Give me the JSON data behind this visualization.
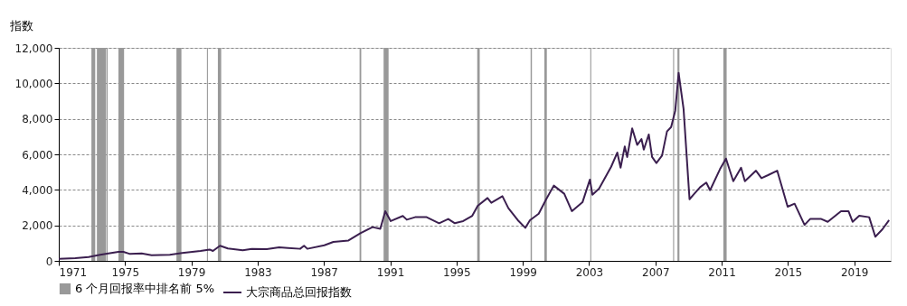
{
  "chart_data": {
    "type": "line",
    "ylabel": "指数",
    "xlim": [
      1971,
      2021.2
    ],
    "xticks": [
      1971,
      1975,
      1979,
      1983,
      1987,
      1991,
      1995,
      1999,
      2003,
      2007,
      2011,
      2015,
      2019
    ],
    "ylim": [
      0,
      12000
    ],
    "yticks": [
      0,
      {
        "value": 2000,
        "label": "2,000"
      },
      {
        "value": 4000,
        "label": "4,000"
      },
      {
        "value": 6000,
        "label": "6,000"
      },
      {
        "value": 8000,
        "label": "8,000"
      },
      {
        "value": 10000,
        "label": "10,000"
      },
      {
        "value": 12000,
        "label": "12,000"
      }
    ],
    "grid": "y",
    "legend": "bottom",
    "series": [
      {
        "name": "大宗商品总回报指数",
        "color": "#3b1f4f",
        "x": [
          1971.0,
          1972.0,
          1972.8,
          1973.5,
          1974.0,
          1974.6,
          1974.9,
          1975.3,
          1976.0,
          1976.6,
          1977.7,
          1978.45,
          1979.55,
          1980.1,
          1980.3,
          1980.73,
          1981.2,
          1982.1,
          1982.65,
          1983.55,
          1984.3,
          1984.83,
          1985.56,
          1985.8,
          1986.0,
          1987.02,
          1987.57,
          1988.48,
          1989.2,
          1989.93,
          1990.4,
          1990.7,
          1991.03,
          1991.76,
          1992.0,
          1992.5,
          1993.2,
          1993.95,
          1994.5,
          1994.9,
          1995.4,
          1995.95,
          1996.28,
          1996.87,
          1997.1,
          1997.77,
          1998.13,
          1998.7,
          1999.15,
          1999.43,
          1999.96,
          2000.41,
          2000.87,
          2001.5,
          2001.96,
          2002.6,
          2003.05,
          2003.2,
          2003.6,
          2004.33,
          2004.7,
          2004.9,
          2005.15,
          2005.3,
          2005.6,
          2005.9,
          2006.16,
          2006.3,
          2006.6,
          2006.8,
          2007.06,
          2007.4,
          2007.7,
          2007.95,
          2008.2,
          2008.4,
          2008.7,
          2009.06,
          2009.3,
          2009.7,
          2010.07,
          2010.3,
          2010.9,
          2011.26,
          2011.7,
          2012.17,
          2012.4,
          2013.07,
          2013.4,
          2013.8,
          2014.35,
          2014.98,
          2015.4,
          2016.0,
          2016.35,
          2016.98,
          2017.4,
          2018.2,
          2018.65,
          2018.9,
          2019.3,
          2019.9,
          2020.27,
          2020.7,
          2021.1
        ],
        "values": [
          120,
          150,
          220,
          340,
          420,
          510,
          510,
          390,
          420,
          320,
          340,
          440,
          560,
          640,
          560,
          850,
          700,
          600,
          670,
          660,
          760,
          730,
          680,
          850,
          680,
          880,
          1070,
          1150,
          1560,
          1900,
          1810,
          2800,
          2240,
          2530,
          2320,
          2460,
          2460,
          2120,
          2360,
          2120,
          2240,
          2540,
          3100,
          3540,
          3270,
          3640,
          2970,
          2290,
          1860,
          2290,
          2660,
          3470,
          4240,
          3780,
          2800,
          3300,
          4580,
          3730,
          4070,
          5300,
          6100,
          5250,
          6440,
          5850,
          7460,
          6530,
          6860,
          6270,
          7120,
          5850,
          5510,
          5930,
          7290,
          7540,
          8470,
          10590,
          8560,
          3470,
          3730,
          4150,
          4410,
          3980,
          5170,
          5760,
          4490,
          5250,
          4490,
          5080,
          4660,
          4830,
          5080,
          3050,
          3220,
          2030,
          2370,
          2370,
          2200,
          2800,
          2800,
          2200,
          2540,
          2460,
          1360,
          1780,
          2290
        ]
      }
    ],
    "bands": [
      {
        "axis": "x",
        "from": 1972.97,
        "to": 1973.2,
        "label": "6 个月回报率中排名前 5%",
        "color": "#999999"
      },
      {
        "axis": "x",
        "from": 1973.3,
        "to": 1973.85,
        "color": "#999999"
      },
      {
        "axis": "x",
        "from": 1973.88,
        "to": 1973.95,
        "color": "#999999"
      },
      {
        "axis": "x",
        "from": 1974.6,
        "to": 1974.94,
        "color": "#999999"
      },
      {
        "axis": "x",
        "from": 1978.1,
        "to": 1978.4,
        "color": "#999999"
      },
      {
        "axis": "x",
        "from": 1979.94,
        "to": 1980.0,
        "color": "#999999"
      },
      {
        "axis": "x",
        "from": 1980.6,
        "to": 1980.8,
        "color": "#999999"
      },
      {
        "axis": "x",
        "from": 1989.15,
        "to": 1989.25,
        "color": "#999999"
      },
      {
        "axis": "x",
        "from": 1990.6,
        "to": 1990.9,
        "color": "#999999"
      },
      {
        "axis": "x",
        "from": 1996.25,
        "to": 1996.4,
        "color": "#999999"
      },
      {
        "axis": "x",
        "from": 1999.47,
        "to": 1999.55,
        "color": "#999999"
      },
      {
        "axis": "x",
        "from": 2000.3,
        "to": 2000.45,
        "color": "#999999"
      },
      {
        "axis": "x",
        "from": 2003.07,
        "to": 2003.13,
        "color": "#999999"
      },
      {
        "axis": "x",
        "from": 2008.07,
        "to": 2008.13,
        "color": "#999999"
      },
      {
        "axis": "x",
        "from": 2008.33,
        "to": 2008.45,
        "color": "#999999"
      },
      {
        "axis": "x",
        "from": 2011.1,
        "to": 2011.3,
        "color": "#999999"
      }
    ]
  }
}
